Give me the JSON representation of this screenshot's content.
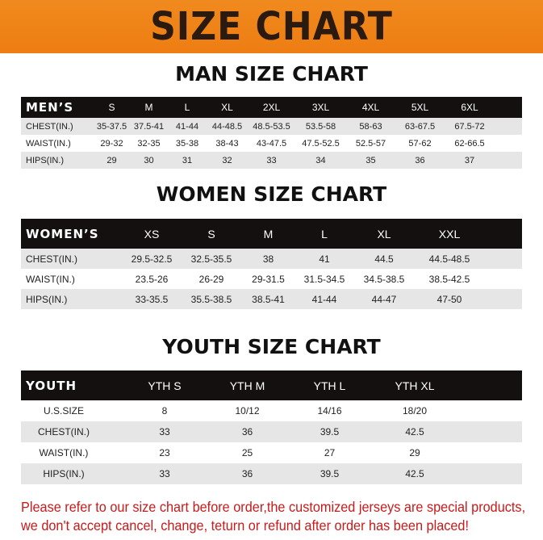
{
  "title": "SIZE CHART",
  "men": {
    "title": "MAN SIZE CHART",
    "header": [
      "MEN’S",
      "S",
      "M",
      "L",
      "XL",
      "2XL",
      "3XL",
      "4XL",
      "5XL",
      "6XL"
    ],
    "rows": [
      [
        "CHEST(IN.)",
        "35-37.5",
        "37.5-41",
        "41-44",
        "44-48.5",
        "48.5-53.5",
        "53.5-58",
        "58-63",
        "63-67.5",
        "67.5-72"
      ],
      [
        "WAIST(IN.)",
        "29-32",
        "32-35",
        "35-38",
        "38-43",
        "43-47.5",
        "47.5-52.5",
        "52.5-57",
        "57-62",
        "62-66.5"
      ],
      [
        "HIPS(IN.)",
        "29",
        "30",
        "31",
        "32",
        "33",
        "34",
        "35",
        "36",
        "37"
      ]
    ]
  },
  "women": {
    "title": "WOMEN SIZE CHART",
    "header": [
      "WOMEN’S",
      "XS",
      "S",
      "M",
      "L",
      "XL",
      "XXL"
    ],
    "rows": [
      [
        "CHEST(IN.)",
        "29.5-32.5",
        "32.5-35.5",
        "38",
        "41",
        "44.5",
        "44.5-48.5"
      ],
      [
        "WAIST(IN.)",
        "23.5-26",
        "26-29",
        "29-31.5",
        "31.5-34.5",
        "34.5-38.5",
        "38.5-42.5"
      ],
      [
        "HIPS(IN.)",
        "33-35.5",
        "35.5-38.5",
        "38.5-41",
        "41-44",
        "44-47",
        "47-50"
      ]
    ]
  },
  "youth": {
    "title": "YOUTH SIZE CHART",
    "header": [
      "YOUTH",
      "YTH S",
      "YTH M",
      "YTH L",
      "YTH XL"
    ],
    "rows": [
      [
        "U.S.SIZE",
        "8",
        "10/12",
        "14/16",
        "18/20"
      ],
      [
        "CHEST(IN.)",
        "33",
        "36",
        "39.5",
        "42.5"
      ],
      [
        "WAIST(IN.)",
        "23",
        "25",
        "27",
        "29"
      ],
      [
        "HIPS(IN.)",
        "33",
        "36",
        "39.5",
        "42.5"
      ]
    ]
  },
  "footer": {
    "line1": "Please refer to our size chart before order,the customized jerseys are special products,",
    "line2": "we don't accept cancel, change, teturn or refund after order has been placed!"
  },
  "colors": {
    "banner": "#ef8418",
    "header_bar": "#141010",
    "notice": "#c81a1a"
  }
}
